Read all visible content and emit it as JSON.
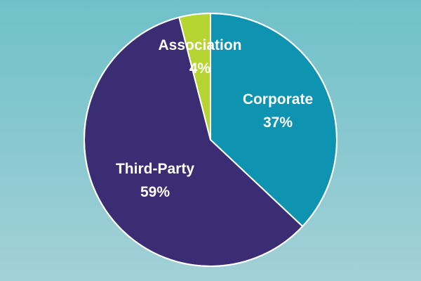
{
  "chart_data": {
    "type": "pie",
    "title": "",
    "slices": [
      {
        "label": "Corporate",
        "value": 37,
        "display": "37%",
        "color": "#0e93b1"
      },
      {
        "label": "Third-Party",
        "value": 59,
        "display": "59%",
        "color": "#3b2d73"
      },
      {
        "label": "Association",
        "value": 4,
        "display": "4%",
        "color": "#b6d432"
      }
    ],
    "start_angle_deg": 0,
    "direction": "clockwise",
    "slice_border_color": "#ffffff",
    "label_color": "#ffffff",
    "legend": "none"
  }
}
